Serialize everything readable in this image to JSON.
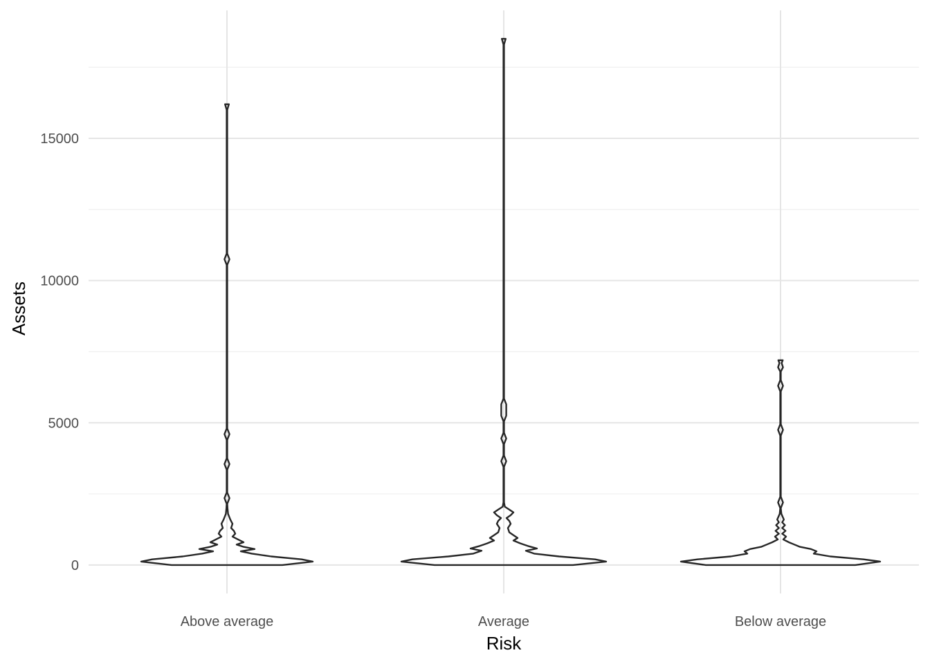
{
  "chart_data": {
    "type": "violin",
    "title": "",
    "xlabel": "Risk",
    "ylabel": "Assets",
    "categories": [
      "Above average",
      "Average",
      "Below average"
    ],
    "ylim": [
      -1000,
      19500
    ],
    "y_major_ticks": [
      0,
      5000,
      10000,
      15000
    ],
    "y_minor_ticks": [
      2500,
      7500,
      12500,
      17500
    ],
    "y_tick_labels": [
      "0",
      "5000",
      "10000",
      "15000"
    ],
    "grid": true,
    "series": [
      {
        "name": "Above average",
        "min": 0,
        "max": 16200,
        "max_half_width": 0.31,
        "profile": [
          [
            0,
            0.2
          ],
          [
            120,
            0.31
          ],
          [
            200,
            0.27
          ],
          [
            300,
            0.16
          ],
          [
            400,
            0.09
          ],
          [
            480,
            0.05
          ],
          [
            560,
            0.1
          ],
          [
            640,
            0.06
          ],
          [
            720,
            0.035
          ],
          [
            800,
            0.06
          ],
          [
            900,
            0.04
          ],
          [
            1000,
            0.02
          ],
          [
            1100,
            0.03
          ],
          [
            1200,
            0.025
          ],
          [
            1300,
            0.015
          ],
          [
            1450,
            0.02
          ],
          [
            1600,
            0.012
          ],
          [
            1800,
            0.004
          ],
          [
            2000,
            0.002
          ],
          [
            2150,
            0.001
          ],
          [
            2350,
            0.009
          ],
          [
            2550,
            0.001
          ],
          [
            3350,
            0.001
          ],
          [
            3550,
            0.009
          ],
          [
            3750,
            0.001
          ],
          [
            4400,
            0.001
          ],
          [
            4600,
            0.009
          ],
          [
            4800,
            0.001
          ],
          [
            10550,
            0.001
          ],
          [
            10750,
            0.009
          ],
          [
            10950,
            0.001
          ],
          [
            16000,
            0.001
          ],
          [
            16200,
            0.007
          ]
        ]
      },
      {
        "name": "Average",
        "min": 0,
        "max": 18500,
        "max_half_width": 0.37,
        "profile": [
          [
            0,
            0.25
          ],
          [
            120,
            0.37
          ],
          [
            200,
            0.33
          ],
          [
            300,
            0.2
          ],
          [
            400,
            0.11
          ],
          [
            500,
            0.08
          ],
          [
            580,
            0.12
          ],
          [
            660,
            0.09
          ],
          [
            760,
            0.06
          ],
          [
            860,
            0.035
          ],
          [
            950,
            0.05
          ],
          [
            1050,
            0.035
          ],
          [
            1150,
            0.02
          ],
          [
            1300,
            0.015
          ],
          [
            1450,
            0.025
          ],
          [
            1550,
            0.02
          ],
          [
            1650,
            0.01
          ],
          [
            1750,
            0.025
          ],
          [
            1850,
            0.035
          ],
          [
            1950,
            0.02
          ],
          [
            2050,
            0.004
          ],
          [
            2200,
            0.001
          ],
          [
            3450,
            0.001
          ],
          [
            3650,
            0.009
          ],
          [
            3850,
            0.001
          ],
          [
            4250,
            0.001
          ],
          [
            4450,
            0.009
          ],
          [
            4650,
            0.001
          ],
          [
            5050,
            0.001
          ],
          [
            5250,
            0.009
          ],
          [
            5450,
            0.009
          ],
          [
            5650,
            0.009
          ],
          [
            5850,
            0.001
          ],
          [
            18300,
            0.001
          ],
          [
            18500,
            0.007
          ]
        ]
      },
      {
        "name": "Below average",
        "min": 0,
        "max": 7200,
        "max_half_width": 0.36,
        "profile": [
          [
            0,
            0.27
          ],
          [
            120,
            0.36
          ],
          [
            200,
            0.3
          ],
          [
            300,
            0.18
          ],
          [
            400,
            0.12
          ],
          [
            480,
            0.13
          ],
          [
            560,
            0.11
          ],
          [
            640,
            0.07
          ],
          [
            720,
            0.05
          ],
          [
            800,
            0.03
          ],
          [
            900,
            0.01
          ],
          [
            1000,
            0.02
          ],
          [
            1100,
            0.006
          ],
          [
            1200,
            0.018
          ],
          [
            1300,
            0.006
          ],
          [
            1400,
            0.016
          ],
          [
            1500,
            0.006
          ],
          [
            1600,
            0.012
          ],
          [
            1800,
            0.003
          ],
          [
            2000,
            0.001
          ],
          [
            2200,
            0.009
          ],
          [
            2400,
            0.001
          ],
          [
            4550,
            0.001
          ],
          [
            4750,
            0.009
          ],
          [
            4950,
            0.001
          ],
          [
            6100,
            0.001
          ],
          [
            6300,
            0.009
          ],
          [
            6500,
            0.001
          ],
          [
            6800,
            0.001
          ],
          [
            6950,
            0.009
          ],
          [
            7100,
            0.004
          ],
          [
            7200,
            0.008
          ]
        ]
      }
    ]
  }
}
